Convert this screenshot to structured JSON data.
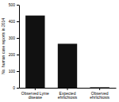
{
  "chart_data": {
    "type": "bar",
    "categories": [
      "Observed Lyme\ndisease",
      "Expected\nehrlichiosis",
      "Observed\nehrlichiosis"
    ],
    "values": [
      435,
      265,
      3
    ],
    "color": "#111111",
    "ylabel": "No. human case reports in 2014",
    "ylim": [
      0,
      500
    ],
    "yticks": [
      0,
      100,
      200,
      300,
      400,
      500
    ]
  }
}
